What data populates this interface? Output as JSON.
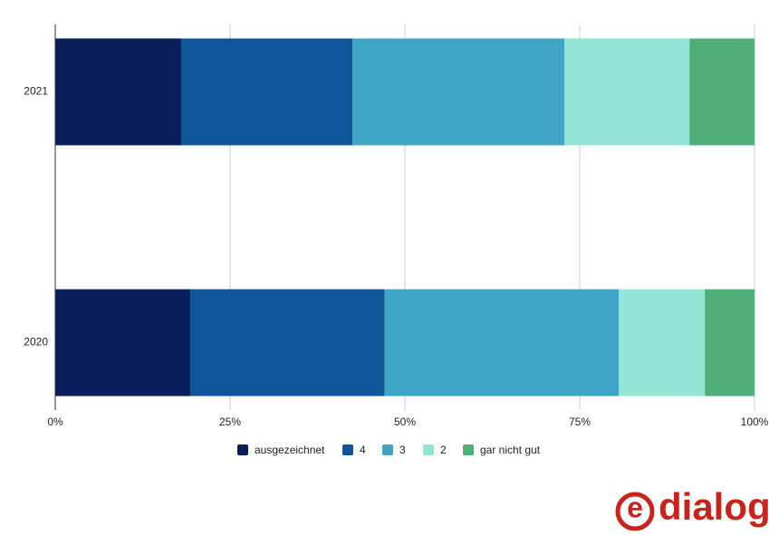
{
  "chart_data": {
    "type": "stacked_barh",
    "categories": [
      "2021",
      "2020"
    ],
    "series": [
      {
        "name": "ausgezeichnet",
        "color": "#0a1f5a",
        "values": [
          18.0,
          19.3
        ]
      },
      {
        "name": "4",
        "color": "#0d5699",
        "values": [
          24.5,
          27.8
        ]
      },
      {
        "name": "3",
        "color": "#3fa5c6",
        "values": [
          30.3,
          33.5
        ]
      },
      {
        "name": "2",
        "color": "#92e5d4",
        "values": [
          17.9,
          12.3
        ]
      },
      {
        "name": "gar nicht gut",
        "color": "#4faf78",
        "values": [
          9.3,
          7.1
        ]
      }
    ],
    "xlim": [
      0,
      100
    ],
    "xticks": [
      {
        "value": 0,
        "label": "0%"
      },
      {
        "value": 25,
        "label": "25%"
      },
      {
        "value": 50,
        "label": "50%"
      },
      {
        "value": 75,
        "label": "75%"
      },
      {
        "value": 100,
        "label": "100%"
      }
    ],
    "grid": true,
    "legend": "bottom"
  },
  "logo": {
    "mark": "e",
    "text": "dialog"
  }
}
